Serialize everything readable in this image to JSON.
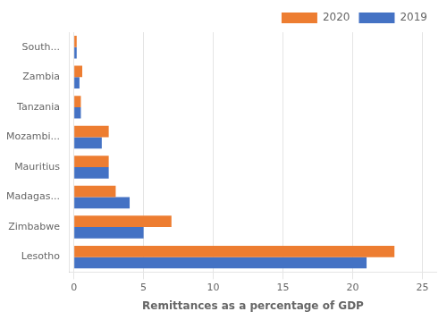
{
  "chart_data": {
    "type": "bar",
    "orientation": "horizontal",
    "categories": [
      "Lesotho",
      "Zimbabwe",
      "Madagas...",
      "Mauritius",
      "Mozambi...",
      "Tanzania",
      "Zambia",
      "South..."
    ],
    "series": [
      {
        "name": "2020",
        "color": "#ed7d31",
        "values": [
          23.0,
          7.0,
          3.0,
          2.5,
          2.5,
          0.5,
          0.6,
          0.2
        ]
      },
      {
        "name": "2019",
        "color": "#4472c4",
        "values": [
          21.0,
          5.0,
          4.0,
          2.5,
          2.0,
          0.5,
          0.4,
          0.2
        ]
      }
    ],
    "xlabel": "Remittances as a percentage of GDP",
    "xlim": [
      -0.3,
      26
    ],
    "xticks": [
      0,
      5,
      10,
      15,
      20,
      25
    ],
    "grid": true,
    "legend": "upper right"
  }
}
